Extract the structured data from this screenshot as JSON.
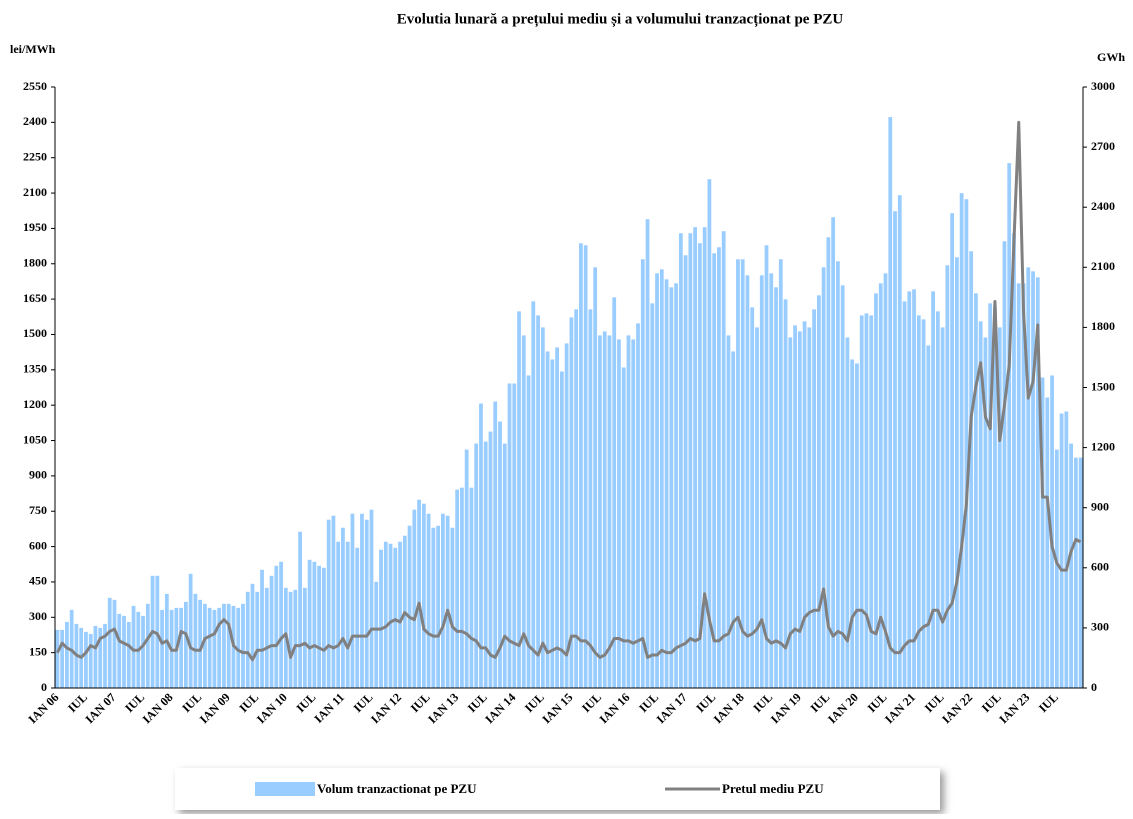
{
  "chart_data": {
    "type": "bar",
    "title": "Evolutia lunară a prețului mediu și a volumului tranzacționat pe PZU",
    "y_label": "lei/MWh",
    "y2_label": "GWh",
    "categories": [
      "IAN 06",
      null,
      null,
      null,
      null,
      null,
      "IUL",
      null,
      null,
      null,
      null,
      null,
      "IAN 07",
      null,
      null,
      null,
      null,
      null,
      "IUL",
      null,
      null,
      null,
      null,
      null,
      "IAN 08",
      null,
      null,
      null,
      null,
      null,
      "IUL",
      null,
      null,
      null,
      null,
      null,
      "IAN 09",
      null,
      null,
      null,
      null,
      null,
      "IUL",
      null,
      null,
      null,
      null,
      null,
      "IAN 10",
      null,
      null,
      null,
      null,
      null,
      "IUL",
      null,
      null,
      null,
      null,
      null,
      "IAN 11",
      null,
      null,
      null,
      null,
      null,
      "IUL",
      null,
      null,
      null,
      null,
      null,
      "IAN 12",
      null,
      null,
      null,
      null,
      null,
      "IUL",
      null,
      null,
      null,
      null,
      null,
      "IAN 13",
      null,
      null,
      null,
      null,
      null,
      "IUL",
      null,
      null,
      null,
      null,
      null,
      "IAN 14",
      null,
      null,
      null,
      null,
      null,
      "IUL",
      null,
      null,
      null,
      null,
      null,
      "IAN 15",
      null,
      null,
      null,
      null,
      null,
      "IUL",
      null,
      null,
      null,
      null,
      null,
      "IAN 16",
      null,
      null,
      null,
      null,
      null,
      "IUL",
      null,
      null,
      null,
      null,
      null,
      "IAN 17",
      null,
      null,
      null,
      null,
      null,
      "IUL",
      null,
      null,
      null,
      null,
      null,
      "IAN 18",
      null,
      null,
      null,
      null,
      null,
      "IUL",
      null,
      null,
      null,
      null,
      null,
      "IAN 19",
      null,
      null,
      null,
      null,
      null,
      "IUL",
      null,
      null,
      null,
      null,
      null,
      "IAN 20",
      null,
      null,
      null,
      null,
      null,
      "IUL",
      null,
      null,
      null,
      null,
      null,
      "IAN 21",
      null,
      null,
      null,
      null,
      null,
      "IUL",
      null,
      null,
      null,
      null,
      null,
      "IAN 22",
      null,
      null,
      null,
      null,
      null,
      "IUL",
      null,
      null,
      null,
      null,
      null,
      "IAN 23",
      null,
      null,
      null,
      null,
      null,
      "IUL",
      null,
      null,
      null,
      null,
      null
    ],
    "series": [
      {
        "name": "Volum tranzactionat pe PZU",
        "type": "bar",
        "axis": "y2",
        "color": "#99ccff",
        "values": [
          290,
          290,
          330,
          390,
          320,
          300,
          280,
          270,
          310,
          300,
          320,
          450,
          440,
          370,
          360,
          330,
          410,
          380,
          360,
          420,
          560,
          560,
          390,
          470,
          390,
          400,
          400,
          430,
          570,
          470,
          440,
          420,
          400,
          390,
          400,
          420,
          420,
          410,
          400,
          420,
          480,
          520,
          480,
          590,
          500,
          560,
          610,
          630,
          500,
          480,
          490,
          780,
          500,
          640,
          630,
          610,
          600,
          840,
          860,
          730,
          800,
          730,
          870,
          700,
          870,
          840,
          890,
          530,
          690,
          730,
          720,
          700,
          730,
          760,
          810,
          890,
          940,
          920,
          870,
          800,
          810,
          870,
          860,
          800,
          990,
          1000,
          1190,
          1000,
          1220,
          1420,
          1230,
          1280,
          1430,
          1330,
          1220,
          1520,
          1520,
          1880,
          1760,
          1560,
          1930,
          1860,
          1800,
          1680,
          1640,
          1700,
          1580,
          1720,
          1850,
          1890,
          2220,
          2210,
          1890,
          2100,
          1760,
          1780,
          1760,
          1950,
          1740,
          1600,
          1760,
          1740,
          1820,
          2140,
          2340,
          1920,
          2070,
          2090,
          2040,
          2000,
          2020,
          2270,
          2160,
          2270,
          2300,
          2220,
          2300,
          2540,
          2170,
          2200,
          2280,
          1760,
          1680,
          2140,
          2140,
          2060,
          1900,
          1800,
          2060,
          2210,
          2070,
          2000,
          2140,
          1940,
          1750,
          1810,
          1780,
          1830,
          1800,
          1890,
          1960,
          2100,
          2250,
          2350,
          2130,
          2010,
          1750,
          1640,
          1620,
          1860,
          1870,
          1860,
          1970,
          2020,
          2070,
          2850,
          2380,
          2460,
          1930,
          1980,
          1990,
          1860,
          1840,
          1710,
          1980,
          1880,
          1800,
          2110,
          2370,
          2150,
          2470,
          2440,
          2180,
          1970,
          1830,
          1750,
          1920,
          1900,
          1800,
          2230,
          2620,
          2270,
          2020,
          2020,
          2100,
          2080,
          2050,
          1550,
          1450,
          1560,
          1190,
          1370,
          1380,
          1220,
          1150,
          1150
        ]
      },
      {
        "name": "Pretul mediu PZU",
        "type": "line",
        "color": "#808080",
        "values": [
          150,
          190,
          170,
          160,
          140,
          130,
          150,
          180,
          170,
          210,
          220,
          240,
          250,
          200,
          190,
          180,
          160,
          160,
          180,
          210,
          240,
          230,
          190,
          200,
          160,
          160,
          240,
          230,
          170,
          160,
          160,
          210,
          220,
          230,
          270,
          290,
          270,
          180,
          160,
          150,
          150,
          120,
          160,
          160,
          170,
          180,
          180,
          210,
          230,
          130,
          180,
          180,
          190,
          170,
          180,
          170,
          160,
          180,
          170,
          180,
          210,
          170,
          220,
          220,
          220,
          220,
          250,
          250,
          250,
          260,
          280,
          290,
          280,
          320,
          300,
          290,
          360,
          250,
          230,
          220,
          220,
          260,
          330,
          260,
          240,
          240,
          230,
          210,
          200,
          170,
          170,
          140,
          130,
          170,
          220,
          200,
          190,
          180,
          230,
          180,
          160,
          140,
          190,
          150,
          160,
          170,
          160,
          140,
          220,
          220,
          200,
          200,
          180,
          150,
          130,
          140,
          170,
          210,
          210,
          200,
          200,
          190,
          200,
          210,
          130,
          140,
          140,
          160,
          150,
          150,
          170,
          180,
          190,
          210,
          200,
          210,
          400,
          290,
          200,
          200,
          220,
          230,
          280,
          300,
          240,
          220,
          230,
          250,
          290,
          210,
          190,
          200,
          190,
          170,
          230,
          250,
          240,
          300,
          320,
          330,
          330,
          420,
          260,
          220,
          240,
          230,
          200,
          300,
          330,
          330,
          310,
          240,
          230,
          300,
          240,
          170,
          150,
          150,
          180,
          200,
          200,
          240,
          260,
          270,
          330,
          330,
          280,
          330,
          360,
          450,
          600,
          780,
          1150,
          1280,
          1380,
          1150,
          1100,
          1640,
          1050,
          1200,
          1370,
          1900,
          2400,
          1600,
          1230,
          1300,
          1540,
          810,
          810,
          600,
          530,
          500,
          500,
          580,
          630,
          620
        ]
      }
    ],
    "ylim": [
      0,
      2550
    ],
    "yticks": [
      0,
      150,
      300,
      450,
      600,
      750,
      900,
      1050,
      1200,
      1350,
      1500,
      1650,
      1800,
      1950,
      2100,
      2250,
      2400,
      2550
    ],
    "y2lim": [
      0,
      3000
    ],
    "y2ticks": [
      0,
      300,
      600,
      900,
      1200,
      1500,
      1800,
      2100,
      2400,
      2700,
      3000
    ],
    "grid": false,
    "legend": "bottom"
  }
}
